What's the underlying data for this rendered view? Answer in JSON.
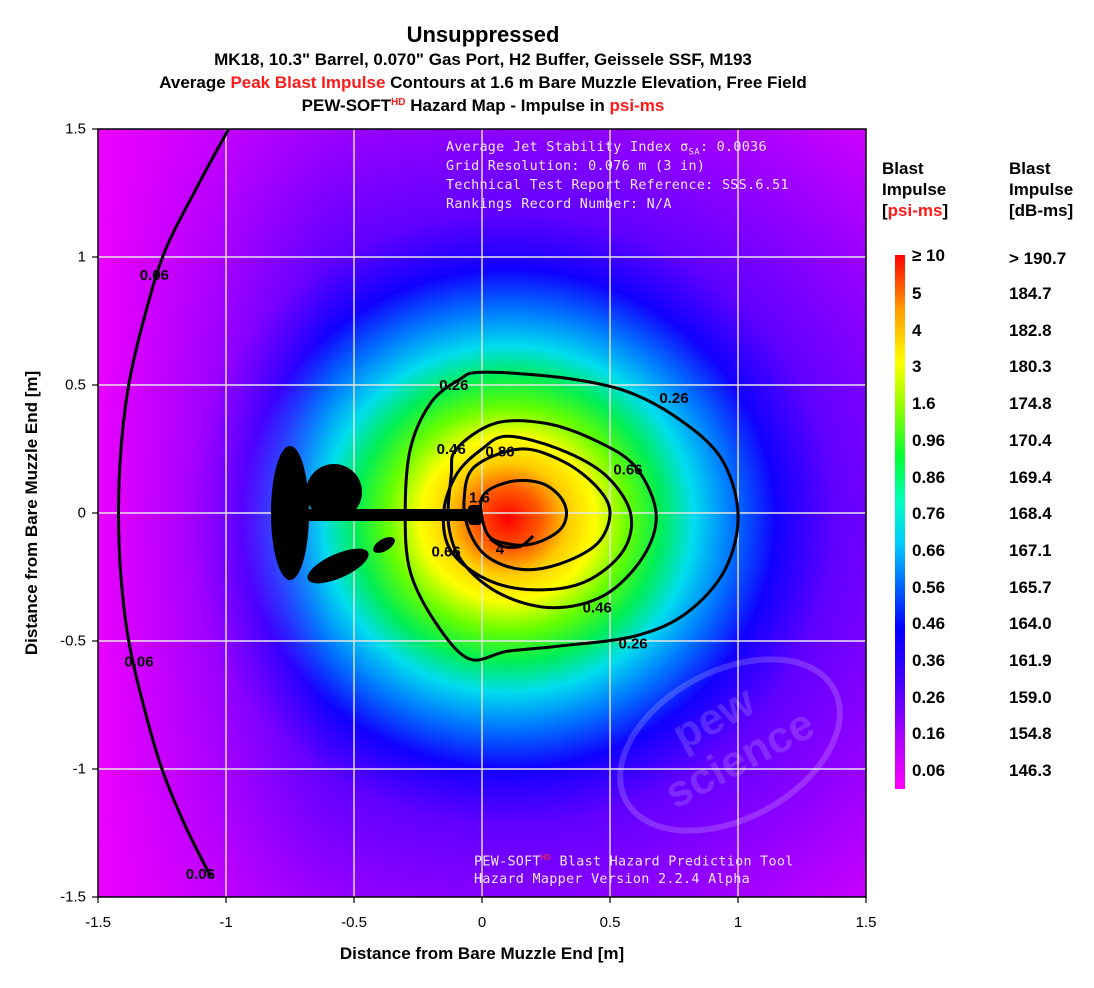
{
  "titles": {
    "main": "Unsuppressed",
    "sub1": "MK18, 10.3\" Barrel, 0.070\" Gas Port, H2 Buffer, Geissele SSF, M193",
    "sub2_pre": "Average ",
    "sub2_red": "Peak Blast Impulse",
    "sub2_post": " Contours at 1.6 m Bare Muzzle Elevation, Free Field",
    "sub3_pre": "PEW-SOFT",
    "sub3_sup": "HD",
    "sub3_mid": " Hazard Map - Impulse in ",
    "sub3_red": "psi-ms"
  },
  "annotations": {
    "line1_pre": "Average Jet Stability Index σ",
    "line1_sub": "SA",
    "line1_post": ": 0.0036",
    "line2": "Grid Resolution: 0.076 m (3 in)",
    "line3": "Technical Test Report Reference: SSS.6.51",
    "line4": "Rankings Record Number: N/A",
    "footer1_pre": "PEW-SOFT",
    "footer1_sup": "HD",
    "footer1_post": " Blast Hazard Prediction Tool",
    "footer2": "Hazard Mapper Version 2.2.4 Alpha"
  },
  "watermark": {
    "text1": "pew",
    "text2": "science"
  },
  "legend": {
    "psi_head1": "Blast",
    "psi_head2": "Impulse",
    "psi_head3_open": "[",
    "psi_head3_red": "psi-ms",
    "psi_head3_close": "]",
    "db_head1": "Blast",
    "db_head2": "Impulse",
    "db_head3": "[dB-ms]",
    "top_label": "≥ 10",
    "entries": [
      {
        "psi": "5",
        "db": "184.7"
      },
      {
        "psi": "4",
        "db": "182.8"
      },
      {
        "psi": "3",
        "db": "180.3"
      },
      {
        "psi": "1.6",
        "db": "174.8"
      },
      {
        "psi": "0.96",
        "db": "170.4"
      },
      {
        "psi": "0.86",
        "db": "169.4"
      },
      {
        "psi": "0.76",
        "db": "168.4"
      },
      {
        "psi": "0.66",
        "db": "167.1"
      },
      {
        "psi": "0.56",
        "db": "165.7"
      },
      {
        "psi": "0.46",
        "db": "164.0"
      },
      {
        "psi": "0.36",
        "db": "161.9"
      },
      {
        "psi": "0.26",
        "db": "159.0"
      },
      {
        "psi": "0.16",
        "db": "154.8"
      },
      {
        "psi": "0.06",
        "db": "146.3"
      }
    ],
    "top_db": "> 190.7",
    "colors": [
      "#ff00ff",
      "#8800ff",
      "#0000ff",
      "#0099ff",
      "#00ffee",
      "#00ff33",
      "#aaff00",
      "#ffff00",
      "#ff9900",
      "#ff0000"
    ]
  },
  "chart_data": {
    "type": "heatmap",
    "title": "Unsuppressed",
    "xlabel": "Distance from Bare Muzzle End [m]",
    "ylabel": "Distance from Bare Muzzle End [m]",
    "xlim": [
      -1.5,
      1.5
    ],
    "ylim": [
      -1.5,
      1.5
    ],
    "xticks": [
      -1.5,
      -1,
      -0.5,
      0,
      0.5,
      1,
      1.5
    ],
    "yticks": [
      -1.5,
      -1,
      -0.5,
      0,
      0.5,
      1,
      1.5
    ],
    "xtick_labels": [
      "-1.5",
      "-1",
      "-0.5",
      "0",
      "0.5",
      "1",
      "1.5"
    ],
    "ytick_labels": [
      "-1.5",
      "-1",
      "-0.5",
      "0",
      "0.5",
      "1",
      "1.5"
    ],
    "grid": true,
    "legend_position": "right",
    "source_xy": [
      0.09,
      0
    ],
    "contour_levels": [
      {
        "value": 0.06,
        "label": "0.06",
        "points": [
          [
            -0.99,
            1.5
          ],
          [
            -1.12,
            1.26
          ],
          [
            -1.24,
            1.02
          ],
          [
            -1.32,
            0.76
          ],
          [
            -1.38,
            0.5
          ],
          [
            -1.41,
            0.25
          ],
          [
            -1.42,
            0
          ],
          [
            -1.41,
            -0.25
          ],
          [
            -1.38,
            -0.5
          ],
          [
            -1.32,
            -0.76
          ],
          [
            -1.25,
            -1.0
          ],
          [
            -1.16,
            -1.22
          ],
          [
            -1.06,
            -1.42
          ]
        ],
        "labels_at": [
          [
            -1.28,
            0.93
          ],
          [
            -1.34,
            -0.58
          ],
          [
            -1.1,
            -1.41
          ]
        ]
      },
      {
        "value": 0.26,
        "label": "0.26",
        "points": [
          [
            0.0,
            0.55
          ],
          [
            0.3,
            0.53
          ],
          [
            0.55,
            0.48
          ],
          [
            0.75,
            0.38
          ],
          [
            0.93,
            0.22
          ],
          [
            1.0,
            0.0
          ],
          [
            0.95,
            -0.22
          ],
          [
            0.8,
            -0.39
          ],
          [
            0.6,
            -0.48
          ],
          [
            0.3,
            -0.52
          ],
          [
            0.1,
            -0.54
          ],
          [
            -0.05,
            -0.57
          ],
          [
            -0.18,
            -0.43
          ],
          [
            -0.28,
            -0.23
          ],
          [
            -0.3,
            0.0
          ],
          [
            -0.28,
            0.25
          ],
          [
            -0.2,
            0.43
          ],
          [
            -0.09,
            0.52
          ],
          [
            0.0,
            0.55
          ]
        ],
        "labels_at": [
          [
            -0.11,
            0.5
          ],
          [
            0.75,
            0.45
          ],
          [
            0.59,
            -0.51
          ]
        ]
      },
      {
        "value": 0.46,
        "label": "0.46",
        "points": [
          [
            -0.1,
            0.25
          ],
          [
            0.05,
            0.35
          ],
          [
            0.25,
            0.35
          ],
          [
            0.45,
            0.28
          ],
          [
            0.6,
            0.18
          ],
          [
            0.68,
            0.0
          ],
          [
            0.63,
            -0.17
          ],
          [
            0.48,
            -0.32
          ],
          [
            0.28,
            -0.37
          ],
          [
            0.08,
            -0.32
          ],
          [
            -0.07,
            -0.2
          ],
          [
            -0.13,
            -0.05
          ],
          [
            -0.12,
            0.15
          ],
          [
            -0.1,
            0.25
          ]
        ],
        "labels_at": [
          [
            -0.12,
            0.25
          ],
          [
            0.45,
            -0.37
          ]
        ]
      },
      {
        "value": 0.66,
        "label": "0.66",
        "points": [
          [
            0.1,
            0.3
          ],
          [
            0.3,
            0.25
          ],
          [
            0.48,
            0.15
          ],
          [
            0.58,
            0.0
          ],
          [
            0.55,
            -0.15
          ],
          [
            0.4,
            -0.27
          ],
          [
            0.2,
            -0.3
          ],
          [
            0.02,
            -0.26
          ],
          [
            -0.12,
            -0.15
          ],
          [
            -0.15,
            0.0
          ],
          [
            -0.1,
            0.15
          ],
          [
            0.0,
            0.25
          ],
          [
            0.1,
            0.3
          ]
        ],
        "labels_at": [
          [
            0.57,
            0.17
          ],
          [
            -0.14,
            -0.15
          ]
        ]
      },
      {
        "value": 0.86,
        "label": "0.86",
        "points": [
          [
            -0.03,
            0.18
          ],
          [
            0.15,
            0.25
          ],
          [
            0.32,
            0.2
          ],
          [
            0.45,
            0.1
          ],
          [
            0.5,
            0.0
          ],
          [
            0.45,
            -0.12
          ],
          [
            0.3,
            -0.2
          ],
          [
            0.15,
            -0.22
          ],
          [
            0.02,
            -0.17
          ],
          [
            -0.05,
            -0.07
          ],
          [
            -0.07,
            0.05
          ],
          [
            -0.03,
            0.18
          ]
        ],
        "labels_at": [
          [
            0.07,
            0.24
          ]
        ]
      },
      {
        "value": 1.6,
        "label": "1.6",
        "points": [
          [
            0.0,
            0.06
          ],
          [
            0.1,
            0.12
          ],
          [
            0.22,
            0.12
          ],
          [
            0.3,
            0.07
          ],
          [
            0.33,
            0.0
          ],
          [
            0.3,
            -0.07
          ],
          [
            0.2,
            -0.12
          ],
          [
            0.1,
            -0.12
          ],
          [
            0.02,
            -0.08
          ],
          [
            0.0,
            0.06
          ]
        ],
        "labels_at": [
          [
            -0.01,
            0.06
          ]
        ]
      },
      {
        "value": 4,
        "label": "4",
        "points": [
          [
            0.03,
            -0.1
          ],
          [
            0.08,
            -0.13
          ],
          [
            0.15,
            -0.13
          ],
          [
            0.2,
            -0.09
          ]
        ],
        "labels_at": [
          [
            0.07,
            -0.14
          ]
        ]
      }
    ]
  }
}
